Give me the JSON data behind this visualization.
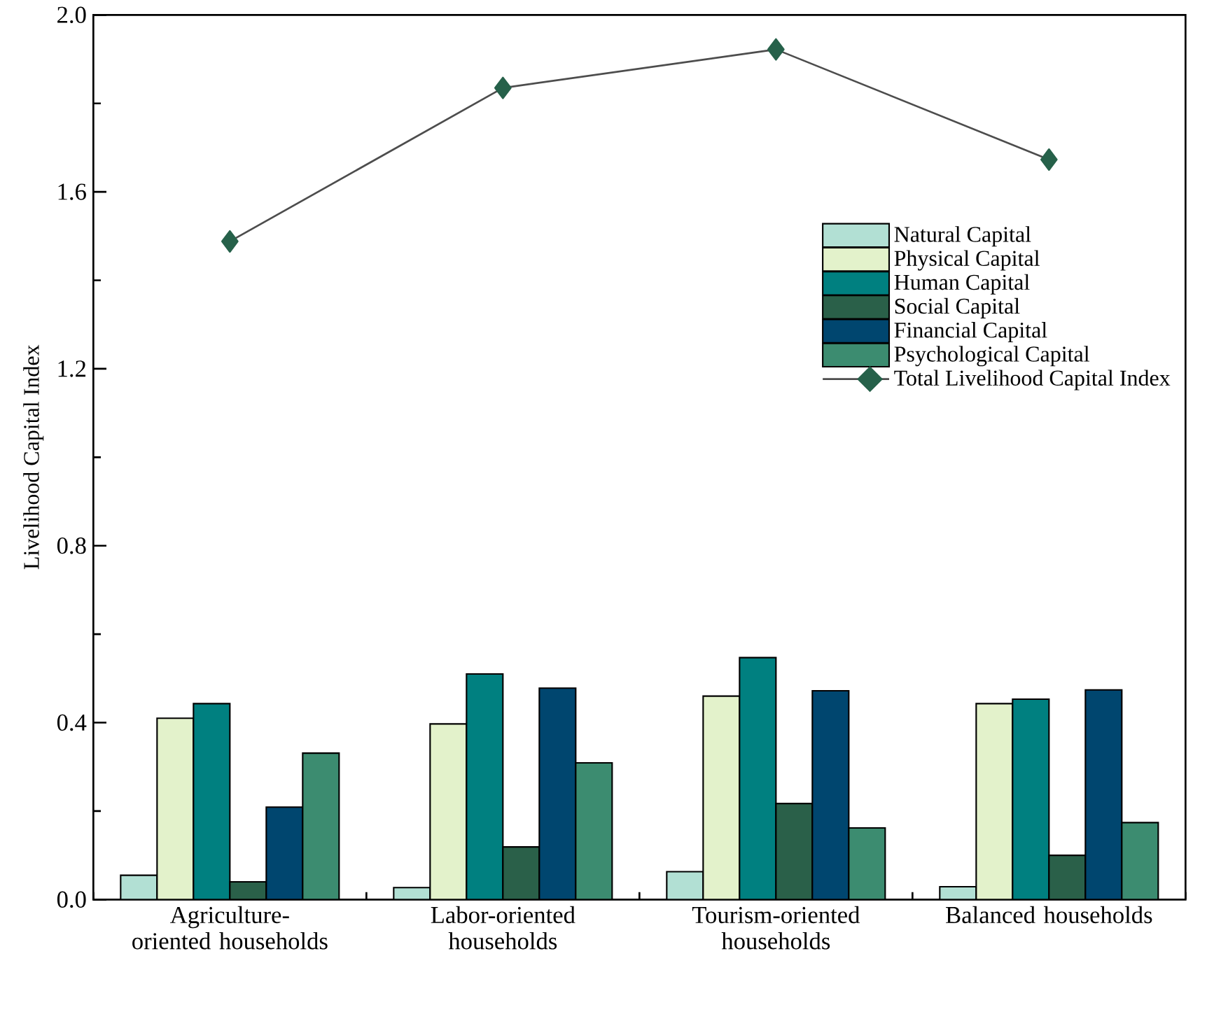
{
  "chart_data": {
    "type": "bar",
    "ylabel": "Livelihood Capital Index",
    "categories": [
      "Agriculture-oriented households",
      "Labor-oriented households",
      "Tourism-oriented households",
      "Balanced households"
    ],
    "series": [
      {
        "name": "Natural Capital",
        "color": "#b2e0d4",
        "values": [
          0.055,
          0.027,
          0.063,
          0.029
        ]
      },
      {
        "name": "Physical Capital",
        "color": "#e3f2cb",
        "values": [
          0.41,
          0.397,
          0.46,
          0.443
        ]
      },
      {
        "name": "Human Capital",
        "color": "#008080",
        "values": [
          0.443,
          0.51,
          0.547,
          0.453
        ]
      },
      {
        "name": "Social Capital",
        "color": "#2a6049",
        "values": [
          0.04,
          0.119,
          0.217,
          0.1
        ]
      },
      {
        "name": "Financial Capital",
        "color": "#00466f",
        "values": [
          0.209,
          0.478,
          0.472,
          0.474
        ]
      },
      {
        "name": "Psychological Capital",
        "color": "#3c8c70",
        "values": [
          0.331,
          0.309,
          0.162,
          0.174
        ]
      },
      {
        "name": "Total Livelihood Capital Index",
        "type": "line",
        "color": "#26614a",
        "marker": "diamond",
        "line_style": "solid",
        "values": [
          1.488,
          1.835,
          1.922,
          1.673
        ]
      }
    ],
    "ylim": [
      0,
      2.0
    ],
    "yticks": [
      {
        "value": 0,
        "label": "0.0"
      },
      {
        "value": 0.4,
        "label": "0.4"
      },
      {
        "value": 0.8,
        "label": "0.8"
      },
      {
        "value": 1.2,
        "label": "1.2"
      },
      {
        "value": 1.6,
        "label": "1.6"
      },
      {
        "value": 2.0,
        "label": "2.0"
      }
    ],
    "legend": "right",
    "grid": false
  }
}
